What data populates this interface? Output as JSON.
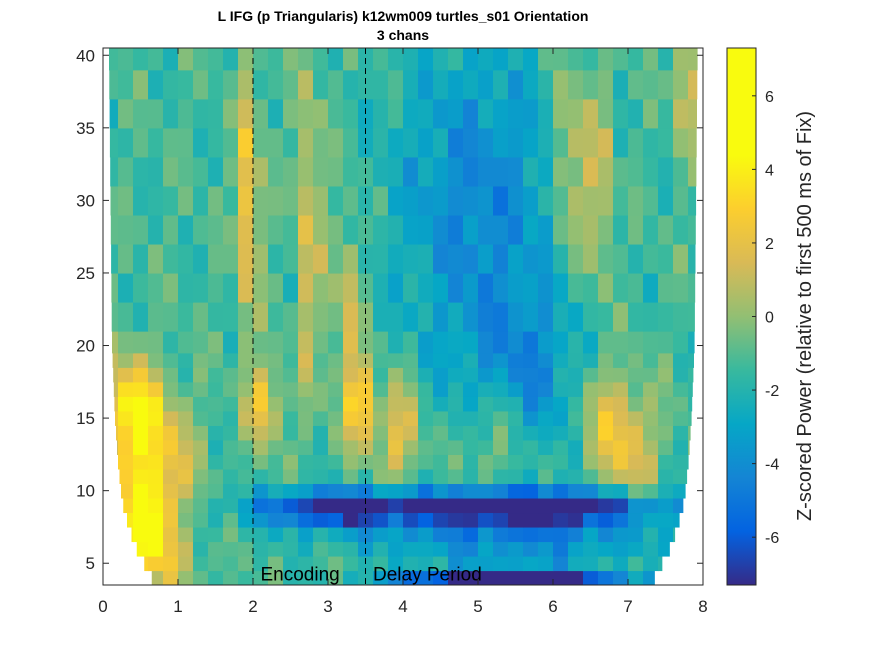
{
  "chart_data": {
    "type": "heatmap",
    "title": "L IFG (p Triangularis) k12wm009 turtles_s01 Orientation",
    "subtitle": "3 chans",
    "xlabel": "",
    "ylabel": "",
    "xlim": [
      0,
      8
    ],
    "ylim": [
      3.5,
      40.5
    ],
    "x_ticks": [
      0,
      1,
      2,
      3,
      4,
      5,
      6,
      7,
      8
    ],
    "y_ticks": [
      5,
      10,
      15,
      20,
      25,
      30,
      35,
      40
    ],
    "colormap": "parula",
    "colorbar": {
      "label": "Z-scored Power (relative to first 500 ms of Fix)",
      "clim": [
        -7.3,
        7.3
      ],
      "ticks": [
        -6,
        -4,
        -2,
        0,
        2,
        4,
        6
      ]
    },
    "event_lines": [
      {
        "x": 2.0,
        "style": "dashed",
        "color": "#000000"
      },
      {
        "x": 3.5,
        "style": "dashed",
        "color": "#000000"
      }
    ],
    "annotations": [
      {
        "text": "Encoding",
        "x": 2.1,
        "y": 4.3
      },
      {
        "text": "Delay Period",
        "x": 3.6,
        "y": 4.3
      }
    ],
    "freq_bins": [
      4,
      5,
      6,
      7,
      8,
      9,
      10,
      11,
      12,
      13,
      14,
      15,
      16,
      17,
      18,
      19,
      20,
      22,
      24,
      26,
      28,
      30,
      32,
      34,
      36,
      38,
      40
    ],
    "time_bins": [
      0.1,
      0.3,
      0.5,
      0.7,
      0.9,
      1.1,
      1.3,
      1.5,
      1.7,
      1.9,
      2.1,
      2.3,
      2.5,
      2.7,
      2.9,
      3.1,
      3.3,
      3.5,
      3.7,
      3.9,
      4.1,
      4.3,
      4.5,
      4.7,
      4.9,
      5.1,
      5.3,
      5.5,
      5.7,
      5.9,
      6.1,
      6.3,
      6.5,
      6.7,
      6.9,
      7.1,
      7.3,
      7.5,
      7.7,
      7.9
    ],
    "cone_of_influence": [
      {
        "freq": 4,
        "t_start": 0.65,
        "t_end": 7.35
      },
      {
        "freq": 5,
        "t_start": 0.55,
        "t_end": 7.45
      },
      {
        "freq": 6,
        "t_start": 0.45,
        "t_end": 7.55
      },
      {
        "freq": 7,
        "t_start": 0.38,
        "t_end": 7.62
      },
      {
        "freq": 8,
        "t_start": 0.32,
        "t_end": 7.68
      },
      {
        "freq": 9,
        "t_start": 0.27,
        "t_end": 7.73
      },
      {
        "freq": 10,
        "t_start": 0.24,
        "t_end": 7.76
      },
      {
        "freq": 12,
        "t_start": 0.2,
        "t_end": 7.8
      },
      {
        "freq": 15,
        "t_start": 0.16,
        "t_end": 7.84
      },
      {
        "freq": 20,
        "t_start": 0.12,
        "t_end": 7.88
      },
      {
        "freq": 30,
        "t_start": 0.1,
        "t_end": 7.9
      },
      {
        "freq": 40,
        "t_start": 0.08,
        "t_end": 7.92
      }
    ],
    "features": [
      {
        "t": 0.35,
        "f": 15.5,
        "z": 5.2,
        "st": 0.3,
        "sf": 2.5
      },
      {
        "t": 0.55,
        "f": 8.0,
        "z": 6.0,
        "st": 0.25,
        "sf": 2.0
      },
      {
        "t": 0.75,
        "f": 12.0,
        "z": 3.5,
        "st": 0.35,
        "sf": 3.0
      },
      {
        "t": 0.7,
        "f": 5.0,
        "z": 2.5,
        "st": 0.4,
        "sf": 1.5
      },
      {
        "t": 1.95,
        "f": 30.0,
        "z": 4.5,
        "st": 0.1,
        "sf": 6.0
      },
      {
        "t": 2.15,
        "f": 16.0,
        "z": 4.0,
        "st": 0.15,
        "sf": 2.0
      },
      {
        "t": 2.75,
        "f": 28.0,
        "z": 3.0,
        "st": 0.12,
        "sf": 8.0
      },
      {
        "t": 3.25,
        "f": 22.0,
        "z": 3.0,
        "st": 0.12,
        "sf": 5.0
      },
      {
        "t": 3.45,
        "f": 16.0,
        "z": 5.0,
        "st": 0.12,
        "sf": 2.0
      },
      {
        "t": 3.95,
        "f": 14.0,
        "z": 3.5,
        "st": 0.2,
        "sf": 2.5
      },
      {
        "t": 5.2,
        "f": 14.0,
        "z": 2.0,
        "st": 0.3,
        "sf": 3.0
      },
      {
        "t": 6.2,
        "f": 33.0,
        "z": 3.5,
        "st": 0.12,
        "sf": 5.0
      },
      {
        "t": 6.6,
        "f": 31.0,
        "z": 3.5,
        "st": 0.12,
        "sf": 5.0
      },
      {
        "t": 6.65,
        "f": 15.0,
        "z": 2.5,
        "st": 0.25,
        "sf": 3.0
      },
      {
        "t": 7.05,
        "f": 13.0,
        "z": 3.0,
        "st": 0.25,
        "sf": 3.0
      },
      {
        "t": 7.8,
        "f": 38.0,
        "z": 4.0,
        "st": 0.1,
        "sf": 3.0
      },
      {
        "t": 5.0,
        "f": 30.0,
        "z": -3.0,
        "st": 0.8,
        "sf": 8.0
      },
      {
        "t": 5.6,
        "f": 18.0,
        "z": -2.5,
        "st": 0.6,
        "sf": 4.0
      },
      {
        "t": 4.5,
        "f": 8.8,
        "z": -5.5,
        "st": 1.5,
        "sf": 0.9
      },
      {
        "t": 6.1,
        "f": 8.8,
        "z": -5.5,
        "st": 1.0,
        "sf": 0.9
      },
      {
        "t": 3.0,
        "f": 8.8,
        "z": -4.0,
        "st": 0.6,
        "sf": 0.9
      },
      {
        "t": 5.5,
        "f": 6.5,
        "z": -3.5,
        "st": 1.5,
        "sf": 0.6
      },
      {
        "t": 5.9,
        "f": 4.0,
        "z": -6.5,
        "st": 0.8,
        "sf": 0.6
      },
      {
        "t": 4.6,
        "f": 4.0,
        "z": -4.0,
        "st": 0.7,
        "sf": 0.6
      }
    ]
  }
}
